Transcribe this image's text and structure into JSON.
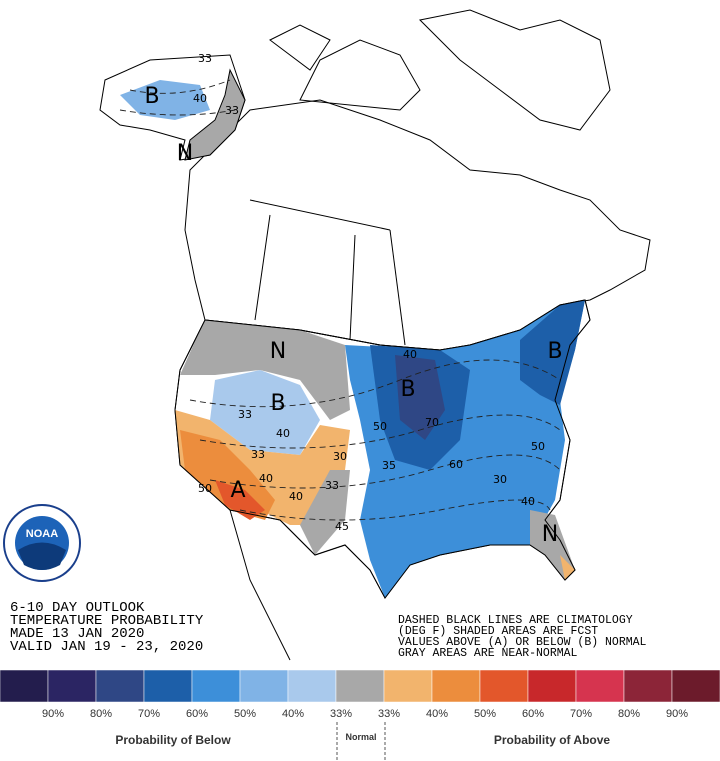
{
  "header": {
    "lines": [
      "6-10 DAY OUTLOOK",
      "TEMPERATURE PROBABILITY",
      "MADE  13 JAN 2020",
      "VALID  JAN 19 - 23, 2020"
    ]
  },
  "notes": [
    "DASHED BLACK LINES ARE CLIMATOLOGY",
    "(DEG F) SHADED AREAS ARE FCST",
    "VALUES ABOVE (A) OR BELOW (B) NORMAL",
    "GRAY AREAS ARE NEAR-NORMAL"
  ],
  "logo": {
    "text": "NOAA"
  },
  "map_labels": [
    "B",
    "33",
    "40",
    "33",
    "N",
    "N",
    "B",
    "33",
    "40",
    "33",
    "40",
    "50",
    "A",
    "40",
    "30",
    "33",
    "45",
    "B",
    "40",
    "50",
    "70",
    "35",
    "60",
    "B",
    "50",
    "30",
    "40",
    "N"
  ],
  "legend": {
    "colors": [
      "#231d4d",
      "#2b2563",
      "#2f4785",
      "#1d5fa9",
      "#3d8fd9",
      "#80b3e6",
      "#a9c9ec",
      "#a8a8a8",
      "#f2b46d",
      "#ec8d3d",
      "#e3572b",
      "#c8282b",
      "#d6344f",
      "#8c2538",
      "#6c1b2b"
    ],
    "labels": [
      "90%",
      "80%",
      "70%",
      "60%",
      "50%",
      "40%",
      "33%",
      "33%",
      "40%",
      "50%",
      "60%",
      "70%",
      "80%",
      "90%"
    ],
    "below_title": "Probability of Below",
    "normal_title": "Normal",
    "above_title": "Probability of Above"
  }
}
